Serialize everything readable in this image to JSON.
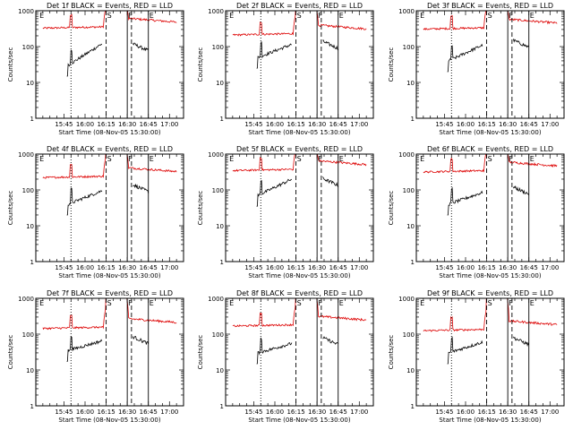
{
  "chart_data": {
    "type": "line",
    "xlabel": "Start Time (08-Nov-05 15:30:00)",
    "ylabel": "Counts/sec",
    "x_tick_labels": [
      "15:45",
      "16:00",
      "16:15",
      "16:30",
      "16:45",
      "17:00"
    ],
    "y_tick_labels": [
      "1",
      "10",
      "100",
      "1000"
    ],
    "xlim_minutes_after_start": [
      -5,
      100
    ],
    "x_ticks_minutes_after_start": [
      15,
      30,
      45,
      60,
      75,
      90
    ],
    "ylim": [
      1,
      1000
    ],
    "yscale": "log",
    "grid": false,
    "legend": "none (colors described in titles)",
    "series_colors": {
      "events": "#000000",
      "lld": "#dd0000"
    },
    "markers": [
      {
        "label": "E",
        "t": -3,
        "style": "none"
      },
      {
        "label": "",
        "t": 20,
        "style": "dotted"
      },
      {
        "label": "S",
        "t": 45,
        "style": "dashed"
      },
      {
        "label": "F",
        "t": 60,
        "style": "solid"
      },
      {
        "label": "",
        "t": 63,
        "style": "dashed"
      },
      {
        "label": "E",
        "t": 75,
        "style": "solid"
      }
    ],
    "panels": [
      {
        "title": "Det 1f BLACK = Events, RED = LLD",
        "lld_base": 340,
        "ev_start": 30,
        "ev_end": 120,
        "ev_after": 120
      },
      {
        "title": "Det 2f BLACK = Events, RED = LLD",
        "lld_base": 220,
        "ev_start": 50,
        "ev_end": 115,
        "ev_after": 140
      },
      {
        "title": "Det 3f BLACK = Events, RED = LLD",
        "lld_base": 320,
        "ev_start": 40,
        "ev_end": 110,
        "ev_after": 150
      },
      {
        "title": "Det 4f BLACK = Events, RED = LLD",
        "lld_base": 230,
        "ev_start": 40,
        "ev_end": 95,
        "ev_after": 140
      },
      {
        "title": "Det 5f BLACK = Events, RED = LLD",
        "lld_base": 360,
        "ev_start": 70,
        "ev_end": 200,
        "ev_after": 210
      },
      {
        "title": "Det 6f BLACK = Events, RED = LLD",
        "lld_base": 330,
        "ev_start": 40,
        "ev_end": 85,
        "ev_after": 120
      },
      {
        "title": "Det 7f BLACK = Events, RED = LLD",
        "lld_base": 150,
        "ev_start": 35,
        "ev_end": 65,
        "ev_after": 85
      },
      {
        "title": "Det 8f BLACK = Events, RED = LLD",
        "lld_base": 175,
        "ev_start": 30,
        "ev_end": 55,
        "ev_after": 80
      },
      {
        "title": "Det 9f BLACK = Events, RED = LLD",
        "lld_base": 130,
        "ev_start": 30,
        "ev_end": 60,
        "ev_after": 80
      }
    ]
  }
}
